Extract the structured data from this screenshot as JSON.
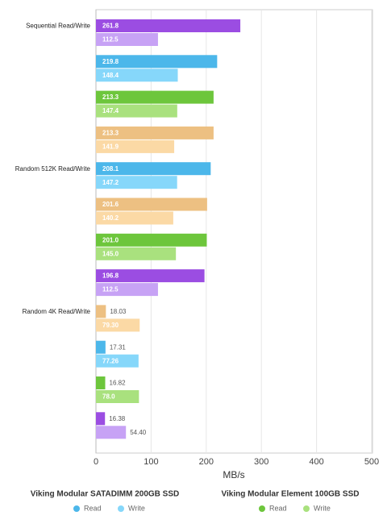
{
  "chart_data": {
    "type": "hbar",
    "categories": [
      "Sequential Read/Write",
      null,
      null,
      null,
      "Random 512K Read/Write",
      null,
      null,
      null,
      "Random 4K Read/Write",
      null,
      null,
      null
    ],
    "series": [
      {
        "values": [
          261.8,
          219.8,
          213.3,
          213.3,
          208.1,
          201.6,
          201.0,
          196.8,
          18.03,
          17.31,
          16.82,
          16.38
        ],
        "value_labels": [
          "261.8",
          "219.8",
          "213.3",
          "213.3",
          "208.1",
          "201.6",
          "201.0",
          "196.8",
          "18.03",
          "17.31",
          "16.82",
          "16.38"
        ],
        "colors": [
          "#9b4de2",
          "#4cb7ea",
          "#6dc63c",
          "#edc082",
          "#4cb7ea",
          "#edc082",
          "#6dc63c",
          "#9b4de2",
          "#edc082",
          "#4cb7ea",
          "#6dc63c",
          "#9b4de2"
        ]
      },
      {
        "values": [
          112.5,
          148.4,
          147.4,
          141.9,
          147.2,
          140.2,
          145.0,
          112.5,
          79.3,
          77.26,
          78.0,
          54.4
        ],
        "value_labels": [
          "112.5",
          "148.4",
          "147.4",
          "141.9",
          "147.2",
          "140.2",
          "145.0",
          "112.5",
          "79.30",
          "77.26",
          "78.0",
          "54.40"
        ],
        "colors": [
          "#c7a2f5",
          "#86d7fa",
          "#a9e17e",
          "#fbd9a5",
          "#86d7fa",
          "#fbd9a5",
          "#a9e17e",
          "#c7a2f5",
          "#fbd9a5",
          "#86d7fa",
          "#a9e17e",
          "#c7a2f5"
        ]
      }
    ],
    "xlabel": "MB/s",
    "xlim": [
      0,
      500
    ],
    "xticks": [
      0,
      100,
      200,
      300,
      400,
      500
    ],
    "grid": true,
    "legend": [
      {
        "title": "Viking Modular SATADIMM 200GB SSD",
        "entries": [
          {
            "name": "Read",
            "color": "#4cb7ea"
          },
          {
            "name": "Write",
            "color": "#86d7fa"
          }
        ]
      },
      {
        "title": "Viking Modular Element 100GB SSD",
        "entries": [
          {
            "name": "Read",
            "color": "#6dc63c"
          },
          {
            "name": "Write",
            "color": "#a9e17e"
          }
        ]
      }
    ]
  }
}
